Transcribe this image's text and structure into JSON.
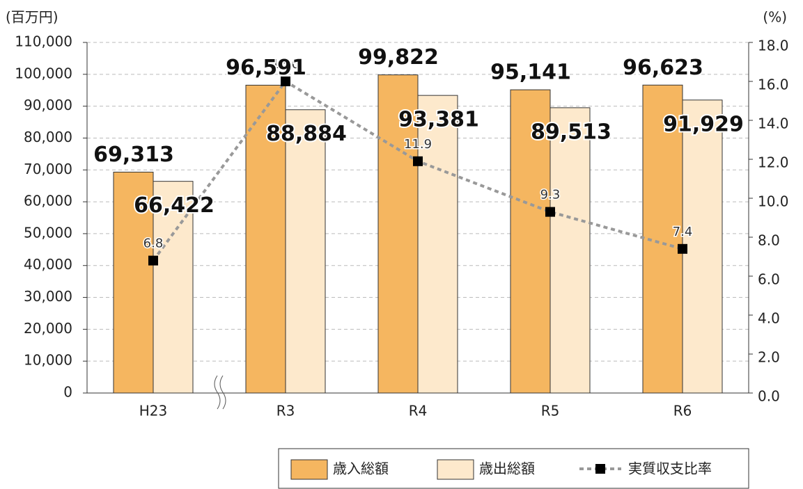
{
  "chart_data": {
    "type": "bar",
    "y_label": "(百万円)",
    "y2_label": "(%)",
    "categories": [
      "H23",
      "R3",
      "R4",
      "R5",
      "R6"
    ],
    "series": [
      {
        "name": "歳入総額",
        "color": "#f5b660",
        "values": [
          69313,
          96591,
          99822,
          95141,
          96623
        ],
        "value_labels": [
          "69,313",
          "96,591",
          "99,822",
          "95,141",
          "96,623"
        ]
      },
      {
        "name": "歳出総額",
        "color": "#fde9cc",
        "values": [
          66422,
          88884,
          93381,
          89513,
          91929
        ],
        "value_labels": [
          "66,422",
          "88,884",
          "93,381",
          "89,513",
          "91,929"
        ]
      },
      {
        "name": "実質収支比率",
        "type": "line",
        "axis": "y2",
        "color": "#999999",
        "values": [
          6.8,
          16.0,
          11.9,
          9.3,
          7.4
        ],
        "value_labels": [
          "6.8",
          "16.0",
          "11.9",
          "9.3",
          "7.4"
        ]
      }
    ],
    "ylim": [
      0,
      110000
    ],
    "yticks": [
      0,
      {
        "value": 10000,
        "label": "10,000"
      },
      {
        "value": 20000,
        "label": "20,000"
      },
      {
        "value": 30000,
        "label": "30,000"
      },
      {
        "value": 40000,
        "label": "40,000"
      },
      {
        "value": 50000,
        "label": "50,000"
      },
      {
        "value": 60000,
        "label": "60,000"
      },
      {
        "value": 70000,
        "label": "70,000"
      },
      {
        "value": 80000,
        "label": "80,000"
      },
      {
        "value": 90000,
        "label": "90,000"
      },
      {
        "value": 100000,
        "label": "100,000"
      },
      {
        "value": 110000,
        "label": "110,000"
      }
    ],
    "y2lim": [
      0,
      18
    ],
    "y2ticks": [
      {
        "value": 0,
        "label": "0.0"
      },
      {
        "value": 2,
        "label": "2.0"
      },
      {
        "value": 4,
        "label": "4.0"
      },
      {
        "value": 6,
        "label": "6.0"
      },
      {
        "value": 8,
        "label": "8.0"
      },
      {
        "value": 10,
        "label": "10.0"
      },
      {
        "value": 12,
        "label": "12.0"
      },
      {
        "value": 14,
        "label": "14.0"
      },
      {
        "value": 16,
        "label": "16.0"
      },
      {
        "value": 18,
        "label": "18.0"
      }
    ],
    "grid": true,
    "legend": "bottom-right"
  }
}
